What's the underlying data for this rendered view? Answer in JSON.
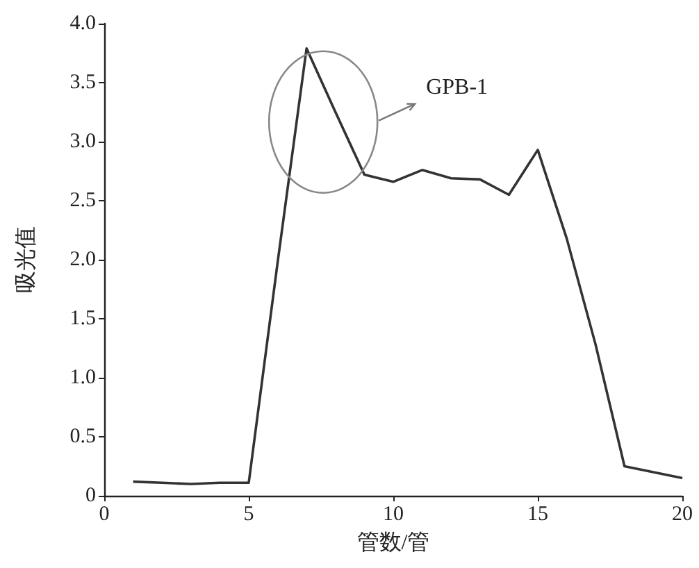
{
  "chart_data": {
    "type": "line",
    "xlabel": "管数/管",
    "ylabel": "吸光值",
    "x": [
      1,
      2,
      3,
      4,
      5,
      6,
      7,
      8,
      9,
      10,
      11,
      12,
      13,
      14,
      15,
      16,
      17,
      18,
      19,
      20
    ],
    "series": [
      {
        "color": "#333333",
        "values": [
          0.12,
          0.11,
          0.1,
          0.11,
          0.11,
          1.98,
          3.79,
          3.25,
          2.72,
          2.66,
          2.76,
          2.69,
          2.68,
          2.55,
          2.93,
          2.18,
          1.28,
          0.25,
          0.2,
          0.15
        ]
      }
    ],
    "xlim": [
      0,
      20
    ],
    "xticks": [
      0,
      5,
      10,
      15,
      20
    ],
    "ylim": [
      0,
      4
    ],
    "yticks": [
      {
        "value": 0,
        "label": "0"
      },
      0.5,
      {
        "value": 1,
        "label": "1.0"
      },
      1.5,
      {
        "value": 2,
        "label": "2.0"
      },
      2.5,
      {
        "value": 3,
        "label": "3.0"
      },
      3.5,
      {
        "value": 4,
        "label": "4.0"
      }
    ],
    "annotations": [
      "GPB-1"
    ],
    "grid": false,
    "marker": "none",
    "line_style": "solid"
  }
}
